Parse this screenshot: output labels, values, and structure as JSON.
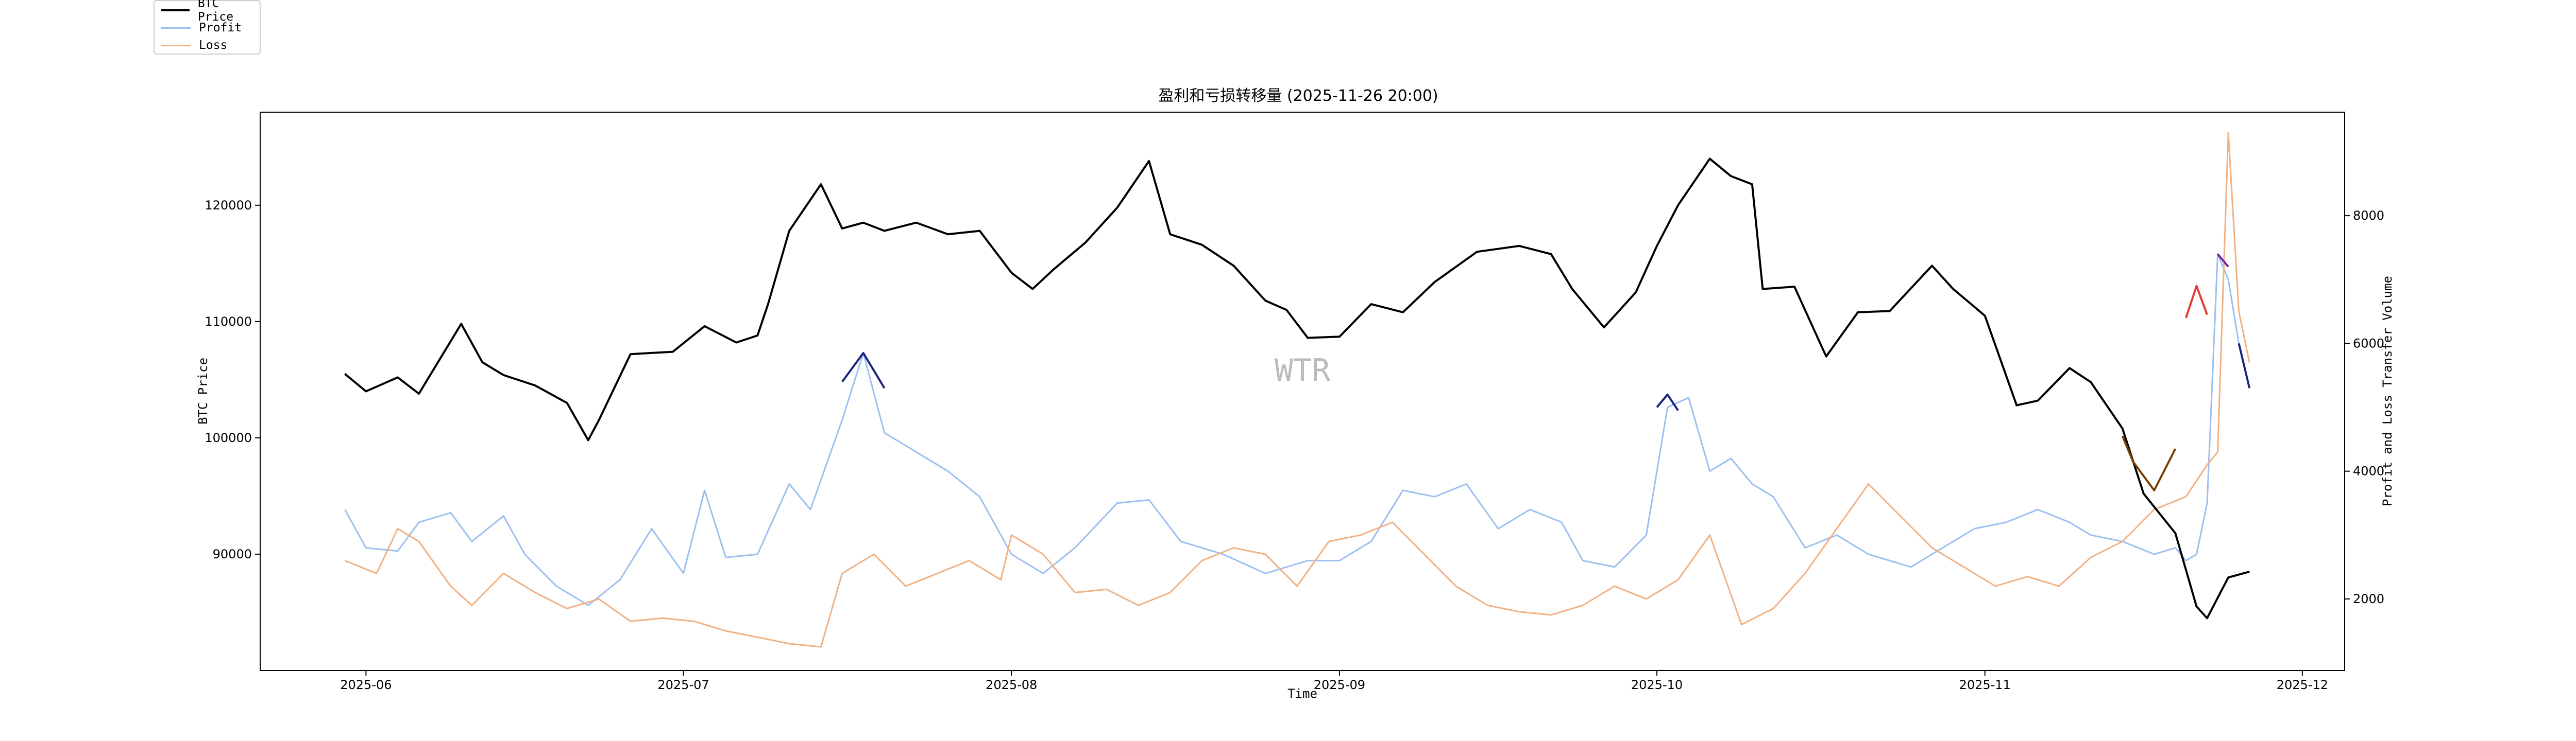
{
  "chart_data": {
    "type": "line",
    "title": "盈利和亏损转移量 (2025-11-26 20:00)",
    "xlabel": "Time",
    "ylabel_left": "BTC Price",
    "ylabel_right": "Profit and Loss Transfer Volume",
    "x_ticks": [
      "2025-06",
      "2025-07",
      "2025-08",
      "2025-09",
      "2025-10",
      "2025-11",
      "2025-12"
    ],
    "y_left_ticks": [
      90000,
      100000,
      110000,
      120000
    ],
    "y_right_ticks": [
      2000,
      4000,
      6000,
      8000
    ],
    "xlim": [
      "2025-05-22",
      "2025-12-05"
    ],
    "ylim_left": [
      80000,
      128000
    ],
    "ylim_right": [
      880,
      9620
    ],
    "watermark": "WTR",
    "grid": false,
    "legend_position": "top-left (outside plot)",
    "series": [
      {
        "name": "BTC Price",
        "axis": "left",
        "color": "#000000",
        "x": [
          "2025-05-30",
          "2025-06-01",
          "2025-06-04",
          "2025-06-06",
          "2025-06-10",
          "2025-06-12",
          "2025-06-14",
          "2025-06-17",
          "2025-06-20",
          "2025-06-22",
          "2025-06-23",
          "2025-06-26",
          "2025-06-30",
          "2025-07-03",
          "2025-07-06",
          "2025-07-08",
          "2025-07-09",
          "2025-07-11",
          "2025-07-14",
          "2025-07-16",
          "2025-07-18",
          "2025-07-20",
          "2025-07-23",
          "2025-07-26",
          "2025-07-29",
          "2025-08-01",
          "2025-08-03",
          "2025-08-05",
          "2025-08-08",
          "2025-08-11",
          "2025-08-14",
          "2025-08-16",
          "2025-08-19",
          "2025-08-22",
          "2025-08-25",
          "2025-08-27",
          "2025-08-29",
          "2025-09-01",
          "2025-09-04",
          "2025-09-07",
          "2025-09-10",
          "2025-09-14",
          "2025-09-18",
          "2025-09-21",
          "2025-09-23",
          "2025-09-26",
          "2025-09-29",
          "2025-10-01",
          "2025-10-03",
          "2025-10-06",
          "2025-10-08",
          "2025-10-10",
          "2025-10-11",
          "2025-10-14",
          "2025-10-17",
          "2025-10-20",
          "2025-10-23",
          "2025-10-27",
          "2025-10-29",
          "2025-11-01",
          "2025-11-04",
          "2025-11-06",
          "2025-11-09",
          "2025-11-11",
          "2025-11-14",
          "2025-11-16",
          "2025-11-19",
          "2025-11-21",
          "2025-11-22",
          "2025-11-24",
          "2025-11-26"
        ],
        "values": [
          105500,
          104000,
          105200,
          103800,
          109800,
          106500,
          105400,
          104500,
          103000,
          99800,
          101500,
          107200,
          107400,
          109600,
          108200,
          108800,
          111500,
          117800,
          121800,
          118000,
          118500,
          117800,
          118500,
          117500,
          117800,
          114200,
          112800,
          114500,
          116800,
          119800,
          123800,
          117500,
          116600,
          114800,
          111800,
          111000,
          108600,
          108700,
          111500,
          110800,
          113400,
          116000,
          116500,
          115800,
          112800,
          109500,
          112500,
          116500,
          120000,
          124000,
          122500,
          121800,
          112800,
          113000,
          107000,
          110800,
          110900,
          114800,
          112800,
          110500,
          102800,
          103200,
          106000,
          104800,
          100800,
          95200,
          91800,
          85500,
          84500,
          88000,
          88500
        ]
      },
      {
        "name": "Profit",
        "axis": "right",
        "color": "#9cbff0",
        "x": [
          "2025-05-30",
          "2025-06-01",
          "2025-06-04",
          "2025-06-06",
          "2025-06-09",
          "2025-06-11",
          "2025-06-14",
          "2025-06-16",
          "2025-06-19",
          "2025-06-22",
          "2025-06-25",
          "2025-06-28",
          "2025-07-01",
          "2025-07-03",
          "2025-07-05",
          "2025-07-08",
          "2025-07-11",
          "2025-07-13",
          "2025-07-16",
          "2025-07-18",
          "2025-07-20",
          "2025-07-23",
          "2025-07-26",
          "2025-07-29",
          "2025-08-01",
          "2025-08-04",
          "2025-08-07",
          "2025-08-11",
          "2025-08-14",
          "2025-08-17",
          "2025-08-21",
          "2025-08-25",
          "2025-08-29",
          "2025-09-01",
          "2025-09-04",
          "2025-09-07",
          "2025-09-10",
          "2025-09-13",
          "2025-09-16",
          "2025-09-19",
          "2025-09-22",
          "2025-09-24",
          "2025-09-27",
          "2025-09-30",
          "2025-10-02",
          "2025-10-04",
          "2025-10-06",
          "2025-10-08",
          "2025-10-10",
          "2025-10-12",
          "2025-10-15",
          "2025-10-18",
          "2025-10-21",
          "2025-10-25",
          "2025-10-28",
          "2025-10-31",
          "2025-11-03",
          "2025-11-06",
          "2025-11-09",
          "2025-11-11",
          "2025-11-14",
          "2025-11-17",
          "2025-11-19",
          "2025-11-20",
          "2025-11-21",
          "2025-11-22",
          "2025-11-23",
          "2025-11-24",
          "2025-11-25",
          "2025-11-26"
        ],
        "values": [
          3400,
          2800,
          2750,
          3200,
          3350,
          2900,
          3300,
          2700,
          2200,
          1900,
          2300,
          3100,
          2400,
          3700,
          2650,
          2700,
          3800,
          3400,
          4800,
          5850,
          4600,
          4300,
          4000,
          3600,
          2700,
          2400,
          2800,
          3500,
          3550,
          2900,
          2700,
          2400,
          2600,
          2600,
          2900,
          3700,
          3600,
          3800,
          3100,
          3400,
          3200,
          2600,
          2500,
          3000,
          5000,
          5150,
          4000,
          4200,
          3800,
          3600,
          2800,
          3000,
          2700,
          2500,
          2800,
          3100,
          3200,
          3400,
          3200,
          3000,
          2900,
          2700,
          2800,
          2600,
          2700,
          3500,
          7400,
          7000,
          6000,
          5300
        ]
      },
      {
        "name": "Loss",
        "axis": "right",
        "color": "#f0b183",
        "x": [
          "2025-05-30",
          "2025-06-02",
          "2025-06-04",
          "2025-06-06",
          "2025-06-09",
          "2025-06-11",
          "2025-06-14",
          "2025-06-17",
          "2025-06-20",
          "2025-06-23",
          "2025-06-26",
          "2025-06-29",
          "2025-07-02",
          "2025-07-05",
          "2025-07-08",
          "2025-07-11",
          "2025-07-14",
          "2025-07-16",
          "2025-07-19",
          "2025-07-22",
          "2025-07-25",
          "2025-07-28",
          "2025-07-31",
          "2025-08-01",
          "2025-08-04",
          "2025-08-07",
          "2025-08-10",
          "2025-08-13",
          "2025-08-16",
          "2025-08-19",
          "2025-08-22",
          "2025-08-25",
          "2025-08-28",
          "2025-08-31",
          "2025-09-03",
          "2025-09-06",
          "2025-09-09",
          "2025-09-12",
          "2025-09-15",
          "2025-09-18",
          "2025-09-21",
          "2025-09-24",
          "2025-09-27",
          "2025-09-30",
          "2025-10-03",
          "2025-10-06",
          "2025-10-09",
          "2025-10-12",
          "2025-10-15",
          "2025-10-18",
          "2025-10-21",
          "2025-10-24",
          "2025-10-27",
          "2025-10-30",
          "2025-11-02",
          "2025-11-05",
          "2025-11-08",
          "2025-11-11",
          "2025-11-14",
          "2025-11-17",
          "2025-11-20",
          "2025-11-22",
          "2025-11-23",
          "2025-11-24",
          "2025-11-25",
          "2025-11-26"
        ],
        "values": [
          2600,
          2400,
          3100,
          2900,
          2200,
          1900,
          2400,
          2100,
          1850,
          2000,
          1650,
          1700,
          1650,
          1500,
          1400,
          1300,
          1250,
          2400,
          2700,
          2200,
          2400,
          2600,
          2300,
          3000,
          2700,
          2100,
          2150,
          1900,
          2100,
          2600,
          2800,
          2700,
          2200,
          2900,
          3000,
          3200,
          2700,
          2200,
          1900,
          1800,
          1750,
          1900,
          2200,
          2000,
          2300,
          3000,
          1600,
          1850,
          2400,
          3100,
          3800,
          3300,
          2800,
          2500,
          2200,
          2350,
          2200,
          2650,
          2900,
          3400,
          3600,
          4100,
          4300,
          9300,
          6500,
          5700
        ]
      }
    ],
    "highlights": [
      {
        "series": "Profit",
        "color": "#1a237e",
        "x": [
          "2025-07-16",
          "2025-07-18",
          "2025-07-20"
        ],
        "values": [
          5400,
          5850,
          5300
        ]
      },
      {
        "series": "Profit",
        "color": "#1a237e",
        "x": [
          "2025-10-01",
          "2025-10-02",
          "2025-10-03"
        ],
        "values": [
          5000,
          5200,
          4950
        ]
      },
      {
        "series": "Profit",
        "color": "#e53935",
        "x": [
          "2025-11-20",
          "2025-11-21",
          "2025-11-22"
        ],
        "values": [
          6400,
          6900,
          6450
        ]
      },
      {
        "series": "Profit",
        "color": "#7b1fa2",
        "x": [
          "2025-11-23",
          "2025-11-24"
        ],
        "values": [
          7400,
          7200
        ]
      },
      {
        "series": "Profit",
        "color": "#1a237e",
        "x": [
          "2025-11-25",
          "2025-11-26"
        ],
        "values": [
          6000,
          5300
        ]
      },
      {
        "series": "Loss",
        "color": "#7b3f00",
        "x": [
          "2025-11-14",
          "2025-11-15",
          "2025-11-17",
          "2025-11-19"
        ],
        "values": [
          4550,
          4150,
          3700,
          4350
        ]
      }
    ]
  }
}
